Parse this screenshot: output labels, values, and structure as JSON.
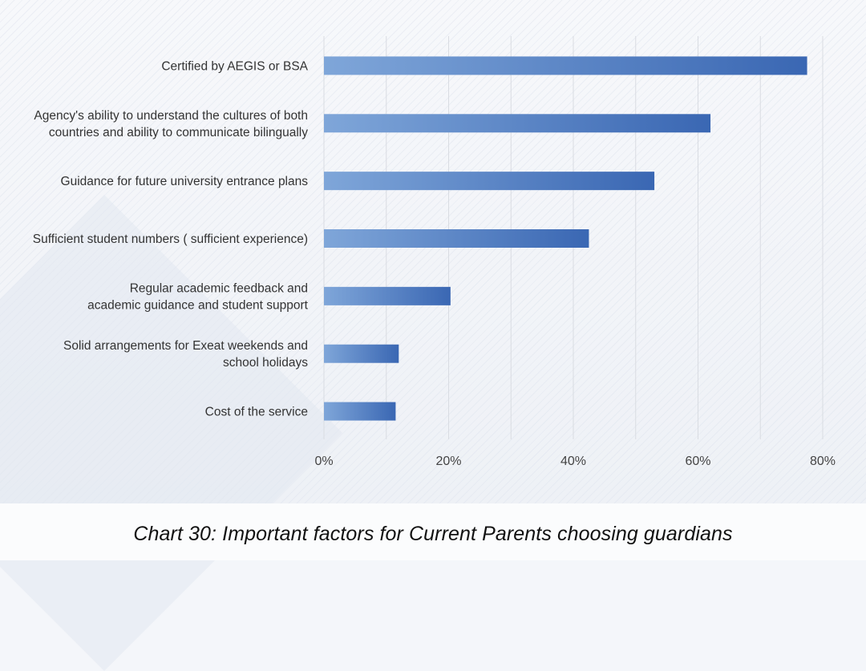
{
  "caption": "Chart 30: Important factors for Current Parents choosing guardians",
  "chart_data": {
    "type": "bar",
    "orientation": "horizontal",
    "title": "Chart 30: Important factors for Current Parents choosing guardians",
    "xlabel": "",
    "ylabel": "",
    "xlim": [
      0,
      80
    ],
    "x_ticks": [
      "0%",
      "20%",
      "40%",
      "60%",
      "80%"
    ],
    "x_tick_values": [
      0,
      20,
      40,
      60,
      80
    ],
    "grid": true,
    "categories": [
      [
        "Certified by AEGIS or BSA"
      ],
      [
        "Agency's ability to understand the cultures of both",
        "countries and ability to communicate bilingually"
      ],
      [
        "Guidance for future university entrance plans"
      ],
      [
        "Sufficient student numbers ( sufficient experience)"
      ],
      [
        "Regular academic feedback and",
        "academic guidance and student support"
      ],
      [
        "Solid arrangements for Exeat weekends and",
        "school holidays"
      ],
      [
        "Cost of the service"
      ]
    ],
    "values": [
      77.5,
      62,
      53,
      42.5,
      20.3,
      12,
      11.5
    ],
    "colors": {
      "bar_start": "#7fa6d9",
      "bar_end": "#3a67b3",
      "grid": "#d9dce2"
    }
  }
}
